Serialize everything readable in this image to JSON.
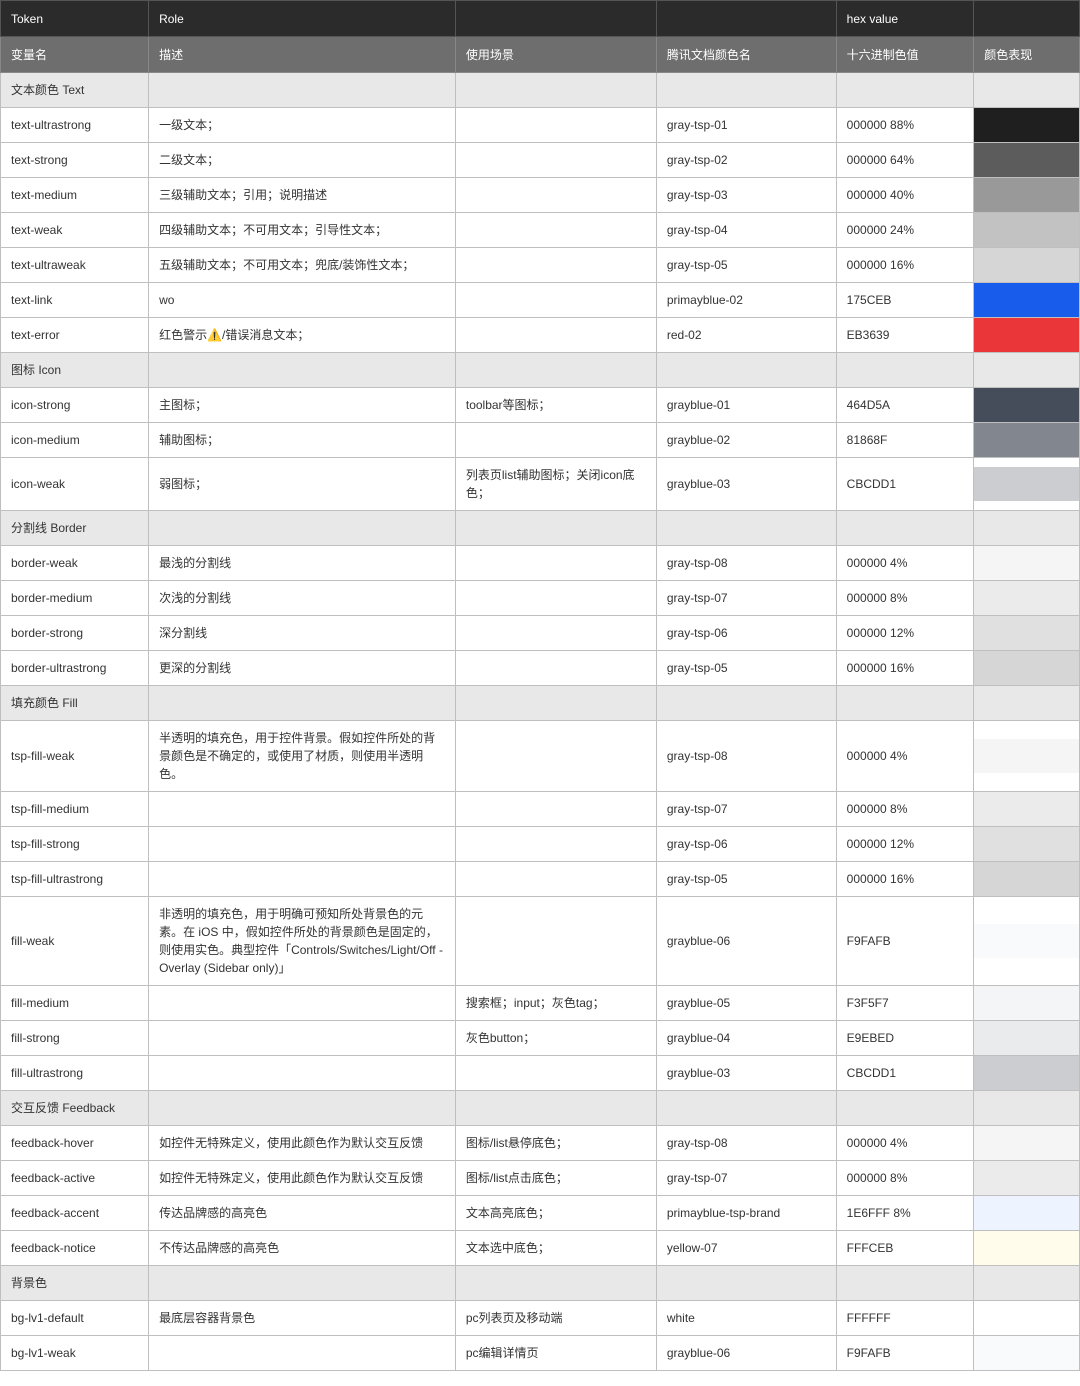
{
  "header1": {
    "c1": "Token",
    "c2": "Role",
    "c3": "",
    "c4": "",
    "c5": "hex value",
    "c6": ""
  },
  "header2": {
    "c1": "变量名",
    "c2": "描述",
    "c3": "使用场景",
    "c4": "腾讯文档颜色名",
    "c5": "十六进制色值",
    "c6": "颜色表现"
  },
  "rows": [
    {
      "section": true,
      "token": "文本颜色 Text"
    },
    {
      "token": "text-ultrastrong",
      "desc": "一级文本；",
      "usage": "",
      "cname": "gray-tsp-01",
      "hex": "000000  88%",
      "swatch": "rgba(0,0,0,0.88)"
    },
    {
      "token": "text-strong",
      "desc": "二级文本；",
      "usage": "",
      "cname": "gray-tsp-02",
      "hex": "000000  64%",
      "swatch": "rgba(0,0,0,0.64)"
    },
    {
      "token": "text-medium",
      "desc": "三级辅助文本；引用；说明描述",
      "usage": "",
      "cname": "gray-tsp-03",
      "hex": "000000  40%",
      "swatch": "rgba(0,0,0,0.40)"
    },
    {
      "token": "text-weak",
      "desc": "四级辅助文本；不可用文本；引导性文本；",
      "usage": "",
      "cname": "gray-tsp-04",
      "hex": "000000  24%",
      "swatch": "rgba(0,0,0,0.24)"
    },
    {
      "token": "text-ultraweak",
      "desc": "五级辅助文本；不可用文本；兜底/装饰性文本；",
      "usage": "",
      "cname": "gray-tsp-05",
      "hex": "000000  16%",
      "swatch": "rgba(0,0,0,0.16)"
    },
    {
      "token": "text-link",
      "desc": "wo",
      "usage": "",
      "cname": "primayblue-02",
      "hex": "175CEB",
      "swatch": "#175CEB"
    },
    {
      "token": "text-error",
      "desc": "红色警示⚠️/错误消息文本；",
      "usage": "",
      "cname": "red-02",
      "hex": "EB3639",
      "swatch": "#EB3639"
    },
    {
      "section": true,
      "token": "图标 Icon"
    },
    {
      "token": "icon-strong",
      "desc": "主图标；",
      "usage": "toolbar等图标；",
      "cname": "grayblue-01",
      "hex": "464D5A",
      "swatch": "#464D5A"
    },
    {
      "token": "icon-medium",
      "desc": "辅助图标；",
      "usage": "",
      "cname": "grayblue-02",
      "hex": "81868F",
      "swatch": "#81868F"
    },
    {
      "token": "icon-weak",
      "desc": "弱图标；",
      "usage": "列表页list辅助图标；关闭icon底色；",
      "cname": "grayblue-03",
      "hex": "CBCDD1",
      "swatch": "#CBCDD1"
    },
    {
      "section": true,
      "token": "分割线 Border"
    },
    {
      "token": "border-weak",
      "desc": "最浅的分割线",
      "usage": "",
      "cname": "gray-tsp-08",
      "hex": "000000 4%",
      "swatch": "rgba(0,0,0,0.04)"
    },
    {
      "token": "border-medium",
      "desc": "次浅的分割线",
      "usage": "",
      "cname": "gray-tsp-07",
      "hex": "000000 8%",
      "swatch": "rgba(0,0,0,0.08)"
    },
    {
      "token": "border-strong",
      "desc": "深分割线",
      "usage": "",
      "cname": "gray-tsp-06",
      "hex": "000000 12%",
      "swatch": "rgba(0,0,0,0.12)"
    },
    {
      "token": "border-ultrastrong",
      "desc": "更深的分割线",
      "usage": "",
      "cname": "gray-tsp-05",
      "hex": "000000  16%",
      "swatch": "rgba(0,0,0,0.16)"
    },
    {
      "section": true,
      "token": "填充颜色 Fill"
    },
    {
      "token": "tsp-fill-weak",
      "desc": "半透明的填充色，用于控件背景。假如控件所处的背景颜色是不确定的，或使用了材质，则使用半透明色。",
      "usage": "",
      "cname": "gray-tsp-08",
      "hex": "000000 4%",
      "swatch": "rgba(0,0,0,0.04)"
    },
    {
      "token": "tsp-fill-medium",
      "desc": "",
      "usage": "",
      "cname": "gray-tsp-07",
      "hex": "000000 8%",
      "swatch": "rgba(0,0,0,0.08)"
    },
    {
      "token": "tsp-fill-strong",
      "desc": "",
      "usage": "",
      "cname": "gray-tsp-06",
      "hex": "000000 12%",
      "swatch": "rgba(0,0,0,0.12)"
    },
    {
      "token": "tsp-fill-ultrastrong",
      "desc": "",
      "usage": "",
      "cname": "gray-tsp-05",
      "hex": "000000  16%",
      "swatch": "rgba(0,0,0,0.16)"
    },
    {
      "token": "fill-weak",
      "desc": "非透明的填充色，用于明确可预知所处背景色的元素。在 iOS 中，假如控件所处的背景颜色是固定的，则使用实色。典型控件「Controls/Switches/Light/Off - Overlay (Sidebar only)」",
      "usage": "",
      "cname": "grayblue-06",
      "hex": "F9FAFB",
      "swatch": "#F9FAFB"
    },
    {
      "token": "fill-medium",
      "desc": "",
      "usage": "搜索框；input；灰色tag；",
      "cname": "grayblue-05",
      "hex": "F3F5F7",
      "swatch": "#F3F5F7"
    },
    {
      "token": "fill-strong",
      "desc": "",
      "usage": "灰色button；",
      "cname": "grayblue-04",
      "hex": "E9EBED",
      "swatch": "#E9EBED"
    },
    {
      "token": "fill-ultrastrong",
      "desc": "",
      "usage": "",
      "cname": "grayblue-03",
      "hex": "CBCDD1",
      "swatch": "#CBCDD1"
    },
    {
      "section": true,
      "token": "交互反馈 Feedback"
    },
    {
      "token": "feedback-hover",
      "desc": "如控件无特殊定义，使用此颜色作为默认交互反馈",
      "usage": "图标/list悬停底色；",
      "cname": "gray-tsp-08",
      "hex": "000000 4%",
      "swatch": "rgba(0,0,0,0.04)"
    },
    {
      "token": "feedback-active",
      "desc": "如控件无特殊定义，使用此颜色作为默认交互反馈",
      "usage": "图标/list点击底色；",
      "cname": "gray-tsp-07",
      "hex": "000000 8%",
      "swatch": "rgba(0,0,0,0.08)"
    },
    {
      "token": "feedback-accent",
      "desc": "传达品牌感的高亮色",
      "usage": "文本高亮底色；",
      "cname": "primayblue-tsp-brand",
      "hex": "1E6FFF 8%",
      "swatch": "rgba(30,111,255,0.08)"
    },
    {
      "token": "feedback-notice",
      "desc": "不传达品牌感的高亮色",
      "usage": "文本选中底色；",
      "cname": "yellow-07",
      "hex": "FFFCEB",
      "swatch": "#FFFCEB"
    },
    {
      "section": true,
      "token": "背景色"
    },
    {
      "token": "bg-lv1-default",
      "desc": "最底层容器背景色",
      "usage": "pc列表页及移动端",
      "cname": "white",
      "hex": "FFFFFF",
      "swatch": "#FFFFFF"
    },
    {
      "token": "bg-lv1-weak",
      "desc": "",
      "usage": "pc编辑详情页",
      "cname": "grayblue-06",
      "hex": "F9FAFB",
      "swatch": "#F9FAFB"
    }
  ]
}
